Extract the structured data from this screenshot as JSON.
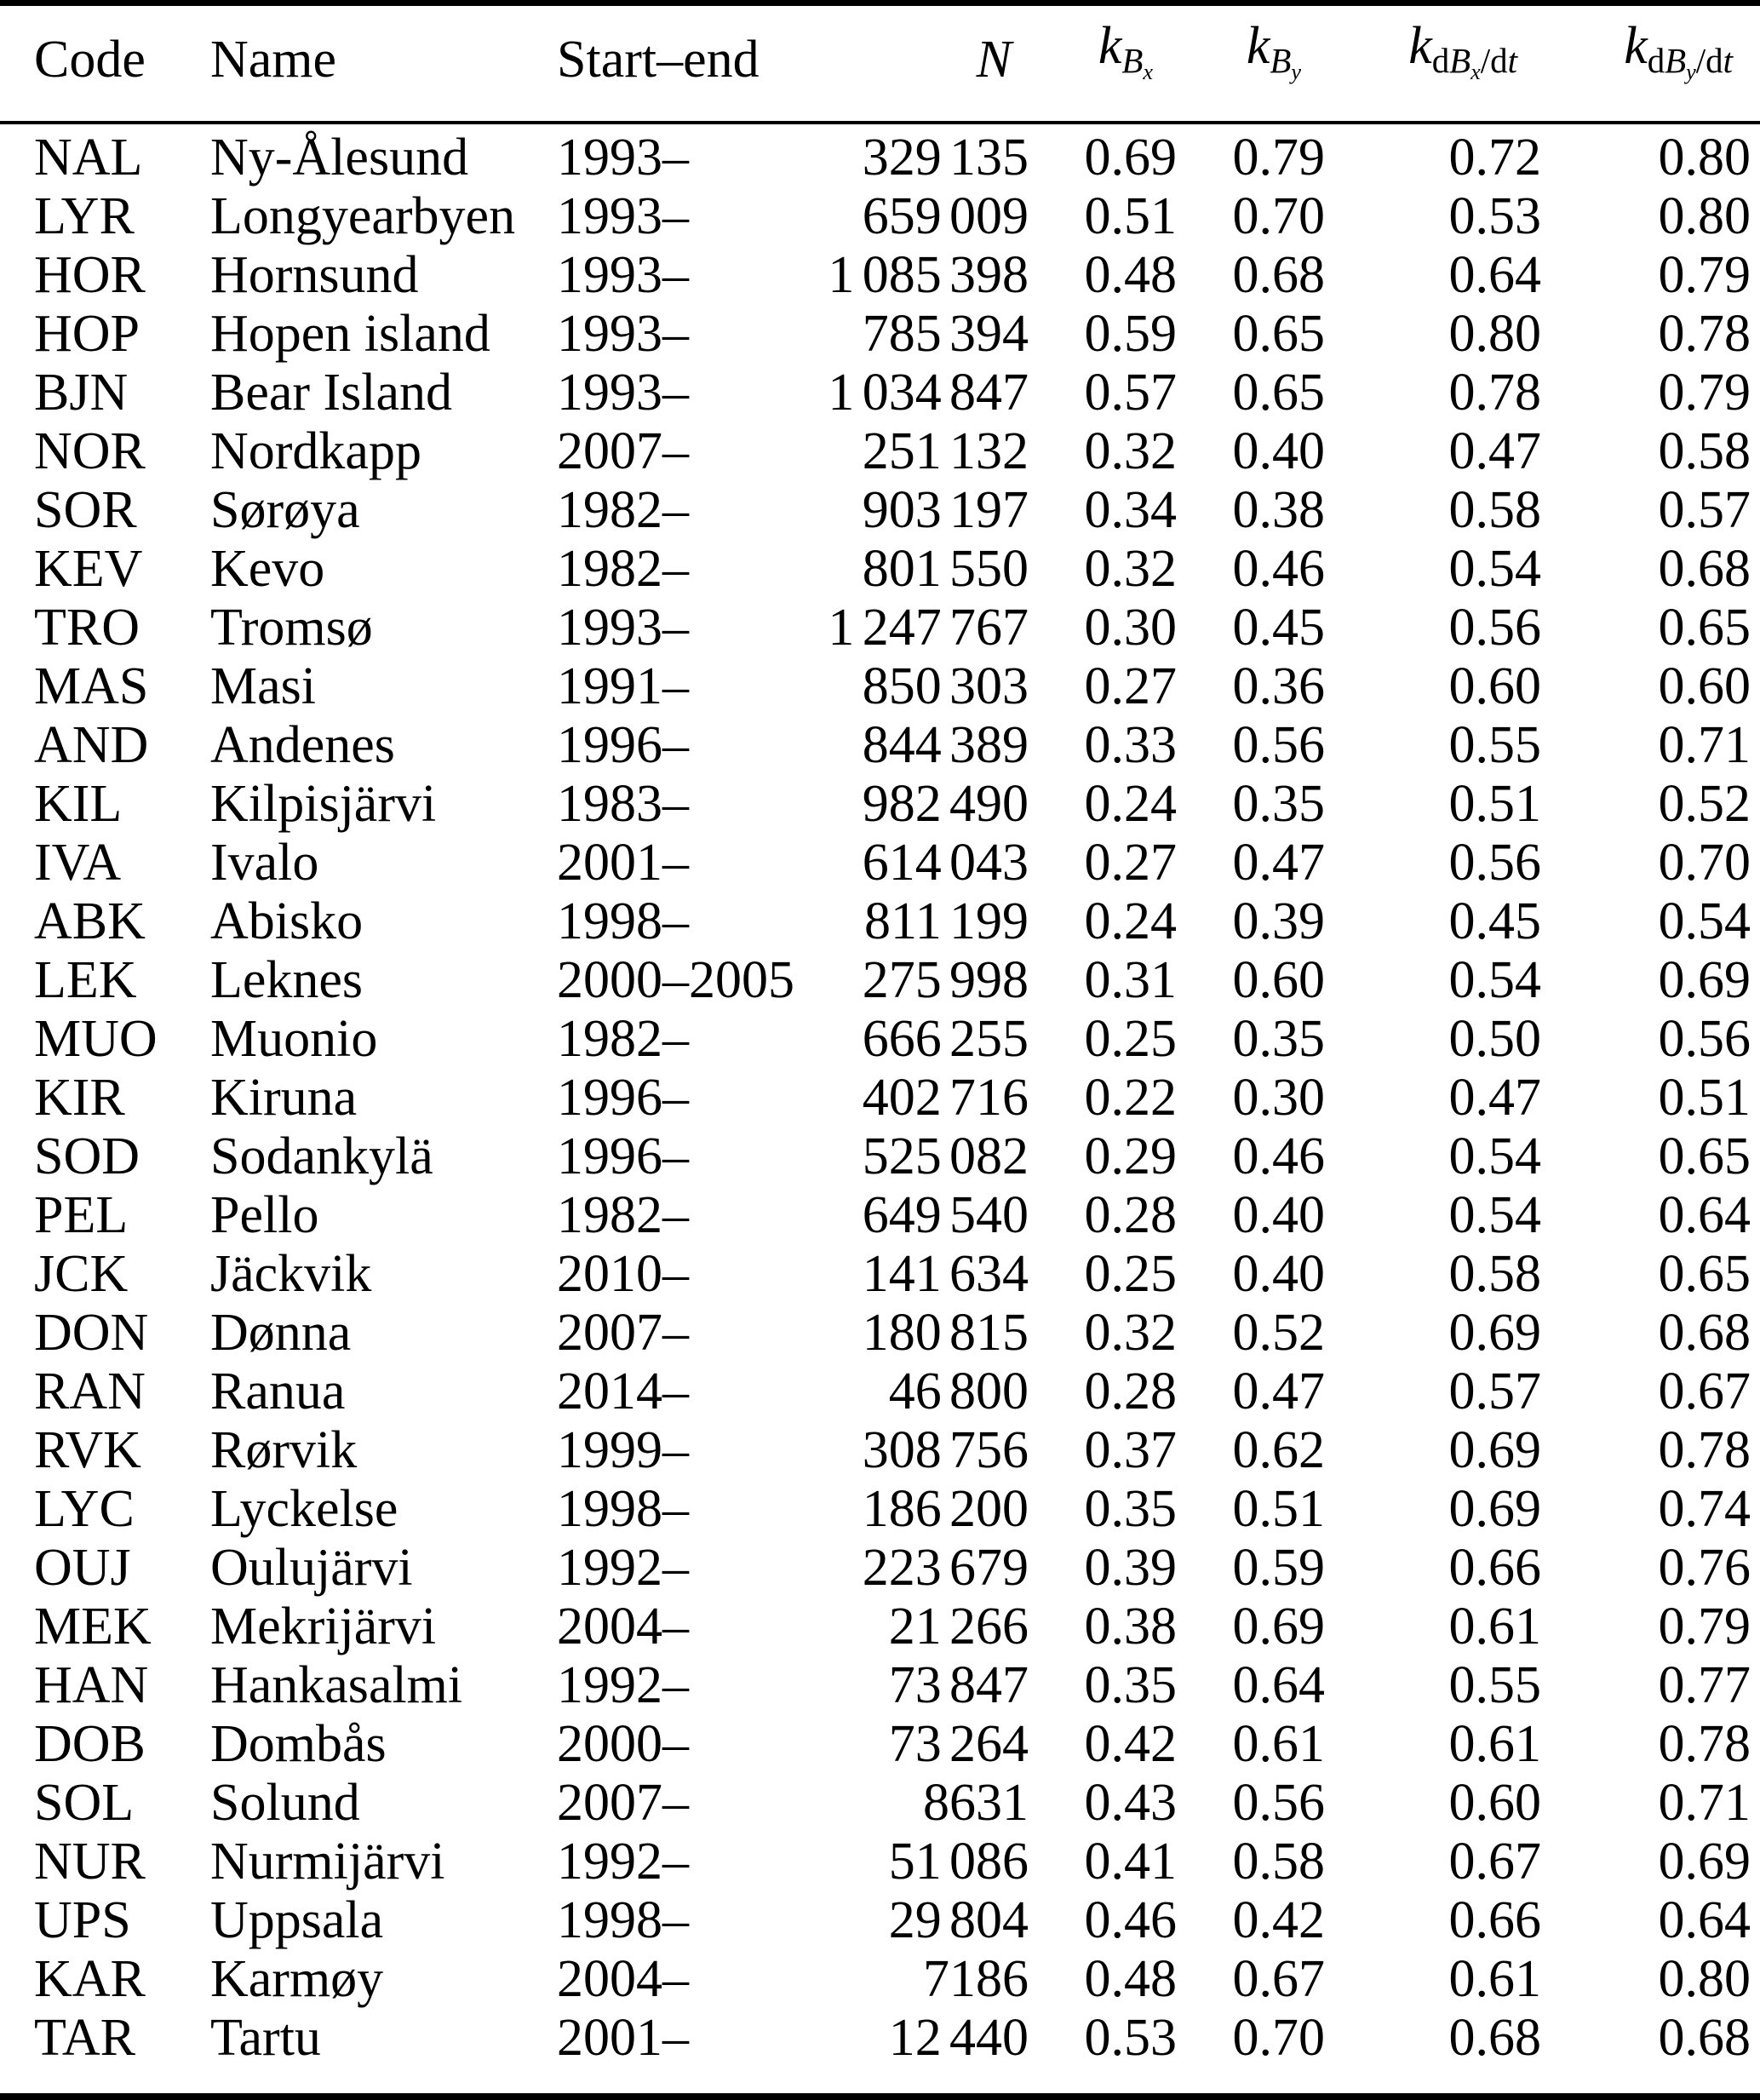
{
  "colors": {
    "text": "#000000",
    "background": "#ffffff",
    "rule": "#000000"
  },
  "table": {
    "columns_order": [
      "code",
      "name",
      "start_end",
      "n",
      "k_bx",
      "k_by",
      "k_dbxdt",
      "k_dbydt"
    ],
    "header": {
      "code": "Code",
      "name": "Name",
      "start_end": "Start–end",
      "n": "N",
      "k_bx": {
        "k": "k",
        "B": "B",
        "sub": "x"
      },
      "k_by": {
        "k": "k",
        "B": "B",
        "sub": "y"
      },
      "k_dbxdt": {
        "k": "k",
        "d1": "d",
        "B": "B",
        "sub": "x",
        "slash": "/",
        "d2": "d",
        "t": "t"
      },
      "k_dbydt": {
        "k": "k",
        "d1": "d",
        "B": "B",
        "sub": "y",
        "slash": "/",
        "d2": "d",
        "t": "t"
      }
    },
    "rows": [
      {
        "code": "NAL",
        "name": "Ny-Ålesund",
        "start_end": "1993–",
        "n": "329 135",
        "k_bx": "0.69",
        "k_by": "0.79",
        "k_dbxdt": "0.72",
        "k_dbydt": "0.80"
      },
      {
        "code": "LYR",
        "name": "Longyearbyen",
        "start_end": "1993–",
        "n": "659 009",
        "k_bx": "0.51",
        "k_by": "0.70",
        "k_dbxdt": "0.53",
        "k_dbydt": "0.80"
      },
      {
        "code": "HOR",
        "name": "Hornsund",
        "start_end": "1993–",
        "n": "1 085 398",
        "k_bx": "0.48",
        "k_by": "0.68",
        "k_dbxdt": "0.64",
        "k_dbydt": "0.79"
      },
      {
        "code": "HOP",
        "name": "Hopen island",
        "start_end": "1993–",
        "n": "785 394",
        "k_bx": "0.59",
        "k_by": "0.65",
        "k_dbxdt": "0.80",
        "k_dbydt": "0.78"
      },
      {
        "code": "BJN",
        "name": "Bear Island",
        "start_end": "1993–",
        "n": "1 034 847",
        "k_bx": "0.57",
        "k_by": "0.65",
        "k_dbxdt": "0.78",
        "k_dbydt": "0.79"
      },
      {
        "code": "NOR",
        "name": "Nordkapp",
        "start_end": "2007–",
        "n": "251 132",
        "k_bx": "0.32",
        "k_by": "0.40",
        "k_dbxdt": "0.47",
        "k_dbydt": "0.58"
      },
      {
        "code": "SOR",
        "name": "Sørøya",
        "start_end": "1982–",
        "n": "903 197",
        "k_bx": "0.34",
        "k_by": "0.38",
        "k_dbxdt": "0.58",
        "k_dbydt": "0.57"
      },
      {
        "code": "KEV",
        "name": "Kevo",
        "start_end": "1982–",
        "n": "801 550",
        "k_bx": "0.32",
        "k_by": "0.46",
        "k_dbxdt": "0.54",
        "k_dbydt": "0.68"
      },
      {
        "code": "TRO",
        "name": "Tromsø",
        "start_end": "1993–",
        "n": "1 247 767",
        "k_bx": "0.30",
        "k_by": "0.45",
        "k_dbxdt": "0.56",
        "k_dbydt": "0.65"
      },
      {
        "code": "MAS",
        "name": "Masi",
        "start_end": "1991–",
        "n": "850 303",
        "k_bx": "0.27",
        "k_by": "0.36",
        "k_dbxdt": "0.60",
        "k_dbydt": "0.60"
      },
      {
        "code": "AND",
        "name": "Andenes",
        "start_end": "1996–",
        "n": "844 389",
        "k_bx": "0.33",
        "k_by": "0.56",
        "k_dbxdt": "0.55",
        "k_dbydt": "0.71"
      },
      {
        "code": "KIL",
        "name": "Kilpisjärvi",
        "start_end": "1983–",
        "n": "982 490",
        "k_bx": "0.24",
        "k_by": "0.35",
        "k_dbxdt": "0.51",
        "k_dbydt": "0.52"
      },
      {
        "code": "IVA",
        "name": "Ivalo",
        "start_end": "2001–",
        "n": "614 043",
        "k_bx": "0.27",
        "k_by": "0.47",
        "k_dbxdt": "0.56",
        "k_dbydt": "0.70"
      },
      {
        "code": "ABK",
        "name": "Abisko",
        "start_end": "1998–",
        "n": "811 199",
        "k_bx": "0.24",
        "k_by": "0.39",
        "k_dbxdt": "0.45",
        "k_dbydt": "0.54"
      },
      {
        "code": "LEK",
        "name": "Leknes",
        "start_end": "2000–2005",
        "n": "275 998",
        "k_bx": "0.31",
        "k_by": "0.60",
        "k_dbxdt": "0.54",
        "k_dbydt": "0.69"
      },
      {
        "code": "MUO",
        "name": "Muonio",
        "start_end": "1982–",
        "n": "666 255",
        "k_bx": "0.25",
        "k_by": "0.35",
        "k_dbxdt": "0.50",
        "k_dbydt": "0.56"
      },
      {
        "code": "KIR",
        "name": "Kiruna",
        "start_end": "1996–",
        "n": "402 716",
        "k_bx": "0.22",
        "k_by": "0.30",
        "k_dbxdt": "0.47",
        "k_dbydt": "0.51"
      },
      {
        "code": "SOD",
        "name": "Sodankylä",
        "start_end": "1996–",
        "n": "525 082",
        "k_bx": "0.29",
        "k_by": "0.46",
        "k_dbxdt": "0.54",
        "k_dbydt": "0.65"
      },
      {
        "code": "PEL",
        "name": "Pello",
        "start_end": "1982–",
        "n": "649 540",
        "k_bx": "0.28",
        "k_by": "0.40",
        "k_dbxdt": "0.54",
        "k_dbydt": "0.64"
      },
      {
        "code": "JCK",
        "name": "Jäckvik",
        "start_end": "2010–",
        "n": "141 634",
        "k_bx": "0.25",
        "k_by": "0.40",
        "k_dbxdt": "0.58",
        "k_dbydt": "0.65"
      },
      {
        "code": "DON",
        "name": "Dønna",
        "start_end": "2007–",
        "n": "180 815",
        "k_bx": "0.32",
        "k_by": "0.52",
        "k_dbxdt": "0.69",
        "k_dbydt": "0.68"
      },
      {
        "code": "RAN",
        "name": "Ranua",
        "start_end": "2014–",
        "n": "46 800",
        "k_bx": "0.28",
        "k_by": "0.47",
        "k_dbxdt": "0.57",
        "k_dbydt": "0.67"
      },
      {
        "code": "RVK",
        "name": "Rørvik",
        "start_end": "1999–",
        "n": "308 756",
        "k_bx": "0.37",
        "k_by": "0.62",
        "k_dbxdt": "0.69",
        "k_dbydt": "0.78"
      },
      {
        "code": "LYC",
        "name": "Lyckelse",
        "start_end": "1998–",
        "n": "186 200",
        "k_bx": "0.35",
        "k_by": "0.51",
        "k_dbxdt": "0.69",
        "k_dbydt": "0.74"
      },
      {
        "code": "OUJ",
        "name": "Oulujärvi",
        "start_end": "1992–",
        "n": "223 679",
        "k_bx": "0.39",
        "k_by": "0.59",
        "k_dbxdt": "0.66",
        "k_dbydt": "0.76"
      },
      {
        "code": "MEK",
        "name": "Mekrijärvi",
        "start_end": "2004–",
        "n": "21 266",
        "k_bx": "0.38",
        "k_by": "0.69",
        "k_dbxdt": "0.61",
        "k_dbydt": "0.79"
      },
      {
        "code": "HAN",
        "name": "Hankasalmi",
        "start_end": "1992–",
        "n": "73 847",
        "k_bx": "0.35",
        "k_by": "0.64",
        "k_dbxdt": "0.55",
        "k_dbydt": "0.77"
      },
      {
        "code": "DOB",
        "name": "Dombås",
        "start_end": "2000–",
        "n": "73 264",
        "k_bx": "0.42",
        "k_by": "0.61",
        "k_dbxdt": "0.61",
        "k_dbydt": "0.78"
      },
      {
        "code": "SOL",
        "name": "Solund",
        "start_end": "2007–",
        "n": "8631",
        "k_bx": "0.43",
        "k_by": "0.56",
        "k_dbxdt": "0.60",
        "k_dbydt": "0.71"
      },
      {
        "code": "NUR",
        "name": "Nurmijärvi",
        "start_end": "1992–",
        "n": "51 086",
        "k_bx": "0.41",
        "k_by": "0.58",
        "k_dbxdt": "0.67",
        "k_dbydt": "0.69"
      },
      {
        "code": "UPS",
        "name": "Uppsala",
        "start_end": "1998–",
        "n": "29 804",
        "k_bx": "0.46",
        "k_by": "0.42",
        "k_dbxdt": "0.66",
        "k_dbydt": "0.64"
      },
      {
        "code": "KAR",
        "name": "Karmøy",
        "start_end": "2004–",
        "n": "7186",
        "k_bx": "0.48",
        "k_by": "0.67",
        "k_dbxdt": "0.61",
        "k_dbydt": "0.80"
      },
      {
        "code": "TAR",
        "name": "Tartu",
        "start_end": "2001–",
        "n": "12 440",
        "k_bx": "0.53",
        "k_by": "0.70",
        "k_dbxdt": "0.68",
        "k_dbydt": "0.68"
      }
    ]
  }
}
